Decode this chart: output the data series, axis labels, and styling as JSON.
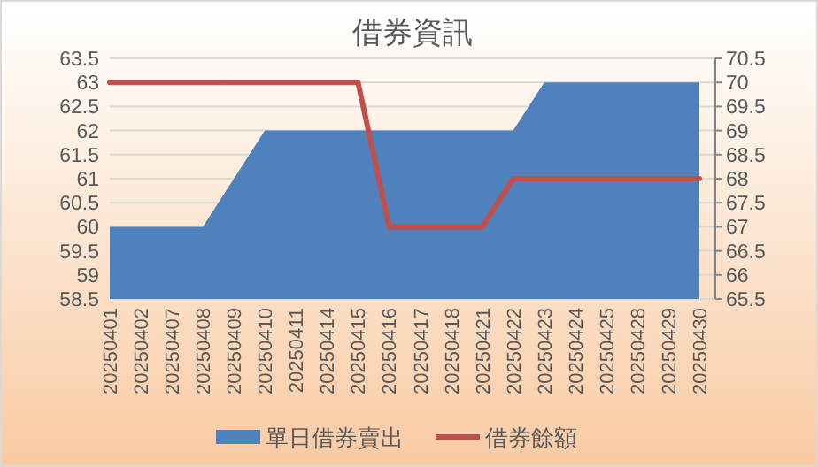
{
  "chart_data": {
    "type": "area",
    "title": "借券資訊",
    "categories": [
      "20250401",
      "20250402",
      "20250407",
      "20250408",
      "20250409",
      "20250410",
      "20250411",
      "20250414",
      "20250415",
      "20250416",
      "20250417",
      "20250418",
      "20250421",
      "20250422",
      "20250423",
      "20250424",
      "20250425",
      "20250428",
      "20250429",
      "20250430"
    ],
    "series": [
      {
        "name": "單日借券賣出",
        "color": "#4f81bd",
        "values": [
          60,
          60,
          60,
          60,
          61,
          62,
          62,
          62,
          62,
          62,
          62,
          62,
          62,
          62,
          63,
          63,
          63,
          63,
          63,
          63
        ]
      },
      {
        "name": "借券餘額",
        "type": "line",
        "axis": "y2",
        "color": "#c0504d",
        "values": [
          70,
          70,
          70,
          70,
          70,
          70,
          70,
          70,
          70,
          67,
          67,
          67,
          67,
          68,
          68,
          68,
          68,
          68,
          68,
          68
        ]
      }
    ],
    "ylim": [
      58.5,
      63.5
    ],
    "yticks": [
      58.5,
      59,
      59.5,
      60,
      60.5,
      61,
      61.5,
      62,
      62.5,
      63,
      63.5
    ],
    "y2lim": [
      65.5,
      70.5
    ],
    "y2ticks": [
      65.5,
      66,
      66.5,
      67,
      67.5,
      68,
      68.5,
      69,
      69.5,
      70,
      70.5
    ],
    "grid": "y",
    "legend": "bottom"
  }
}
